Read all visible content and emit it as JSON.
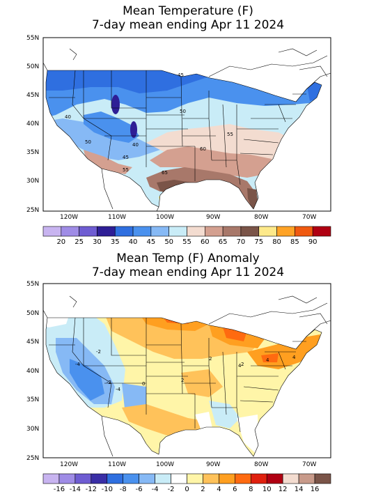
{
  "panels": [
    {
      "title_line1": "Mean Temperature (F)",
      "title_line2": "7-day mean ending Apr 11 2024",
      "lat_ticks": [
        "55N",
        "50N",
        "45N",
        "40N",
        "35N",
        "30N",
        "25N"
      ],
      "lon_ticks": [
        "120W",
        "110W",
        "100W",
        "90W",
        "80W",
        "70W"
      ],
      "colorbar": {
        "colors": [
          "#c8b4f0",
          "#9f8ce6",
          "#6e5cd2",
          "#2e1e96",
          "#2f6fe0",
          "#4a91ee",
          "#86b9f5",
          "#c9ecf7",
          "#f3dcd0",
          "#d4a090",
          "#a8786a",
          "#7a5448",
          "#fde98a",
          "#ffa326",
          "#f05a10",
          "#b00012"
        ],
        "labels": [
          "20",
          "25",
          "30",
          "35",
          "40",
          "45",
          "50",
          "55",
          "60",
          "65",
          "70",
          "75",
          "80",
          "85",
          "90"
        ]
      },
      "contour_labels": [
        "40",
        "45",
        "50",
        "55",
        "60",
        "65",
        "40",
        "45",
        "50",
        "55"
      ]
    },
    {
      "title_line1": "Mean Temp (F) Anomaly",
      "title_line2": "7-day mean ending Apr 11 2024",
      "lat_ticks": [
        "55N",
        "50N",
        "45N",
        "40N",
        "35N",
        "30N",
        "25N"
      ],
      "lon_ticks": [
        "120W",
        "110W",
        "100W",
        "90W",
        "80W",
        "70W"
      ],
      "colorbar": {
        "colors": [
          "#c8b4f0",
          "#9f8ce6",
          "#6e5cd2",
          "#3a2ea6",
          "#2f6fe0",
          "#4a91ee",
          "#86b9f5",
          "#c9ecf7",
          "#ffffff",
          "#fff5a8",
          "#ffc25a",
          "#ff9f20",
          "#ff6a10",
          "#e0200e",
          "#b00012",
          "#f3dcd0",
          "#c89a8a",
          "#7a5448"
        ],
        "labels": [
          "-16",
          "-14",
          "-12",
          "-10",
          "-8",
          "-6",
          "-4",
          "-2",
          "0",
          "2",
          "4",
          "6",
          "8",
          "10",
          "12",
          "14",
          "16"
        ]
      },
      "contour_labels": [
        "-2",
        "-4",
        "-2",
        "-4",
        "0",
        "2",
        "2",
        "2",
        "4",
        "4",
        "4"
      ]
    }
  ]
}
